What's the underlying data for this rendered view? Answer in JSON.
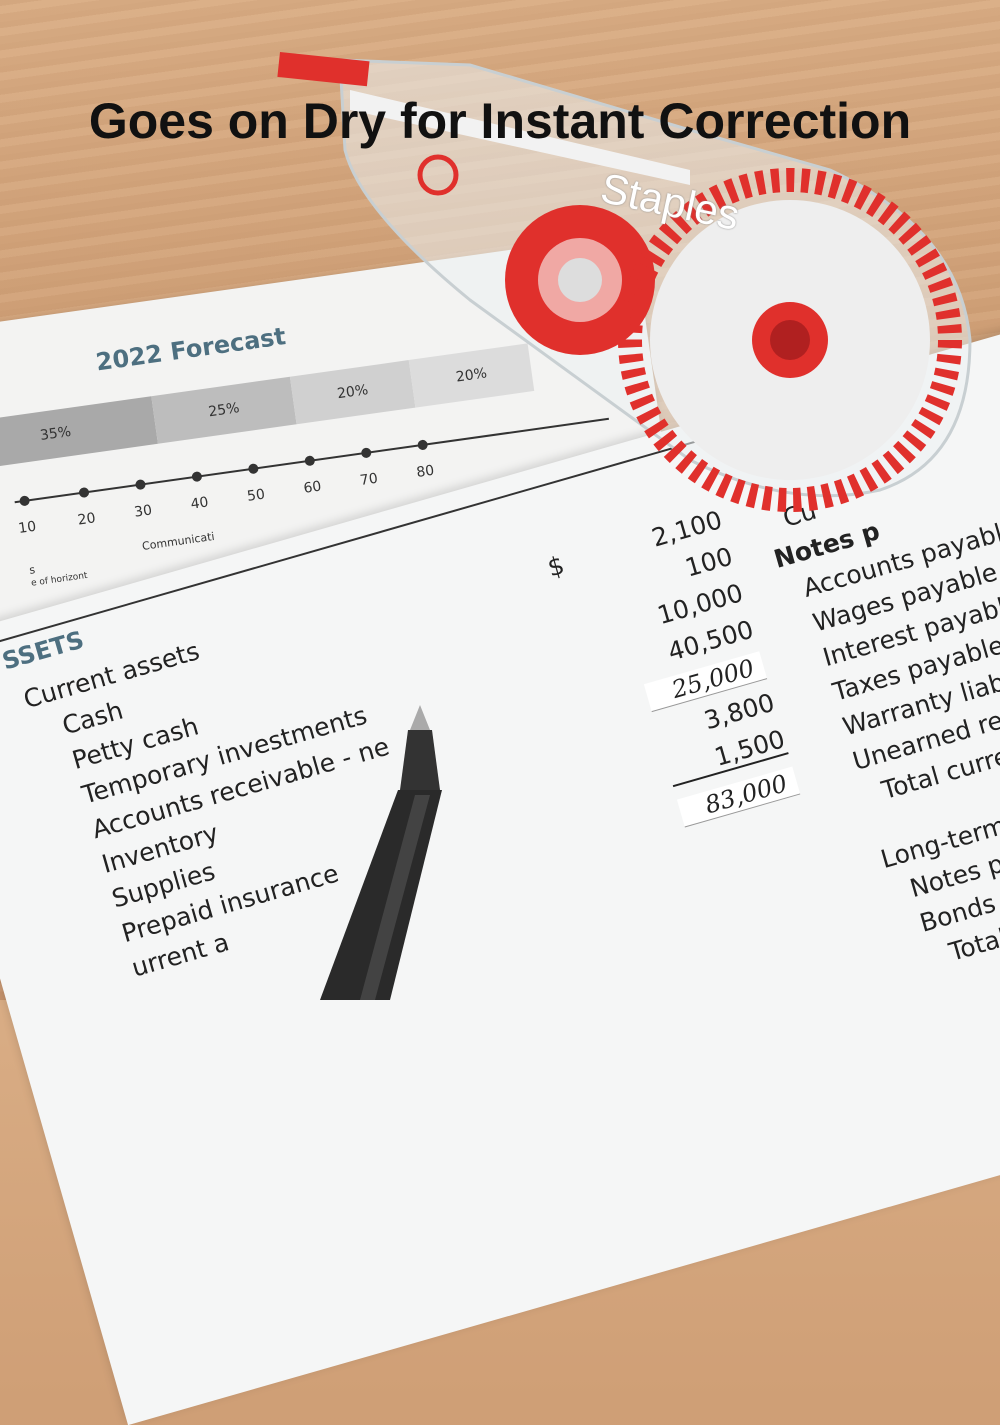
{
  "headline": "Goes on Dry for Instant Correction",
  "brand": "Staples",
  "forecast": {
    "title": "2022 Forecast",
    "bands": [
      "35%",
      "25%",
      "20%",
      "20%"
    ],
    "ticks": [
      "10",
      "20",
      "30",
      "40",
      "50",
      "60",
      "70",
      "80"
    ],
    "caption1": "Communicati",
    "caption2": "s",
    "caption3": "e of horizont"
  },
  "sheet": {
    "heading": "SSETS",
    "left": [
      "Current assets",
      "Cash",
      "Petty cash",
      "Temporary investments",
      "Accounts receivable - ne",
      "Inventory",
      "Supplies",
      "Prepaid insurance",
      "urrent a"
    ],
    "currency": "$",
    "values": [
      "2,100",
      "100",
      "10,000",
      "40,500",
      "3,800",
      "1,500"
    ],
    "handwritten": [
      "25,000",
      "83,000"
    ],
    "right": [
      "Cu",
      "Notes p",
      "Accounts payable",
      "Wages payable",
      "Interest payable",
      "Taxes payable",
      "Warranty liability",
      "Unearned reve",
      "Total current",
      "Long-term lia",
      "Notes paya",
      "Bonds pa",
      "Total lo"
    ]
  },
  "colors": {
    "tape_red": "#e0302c",
    "heading_blue": "#4d6f80"
  }
}
